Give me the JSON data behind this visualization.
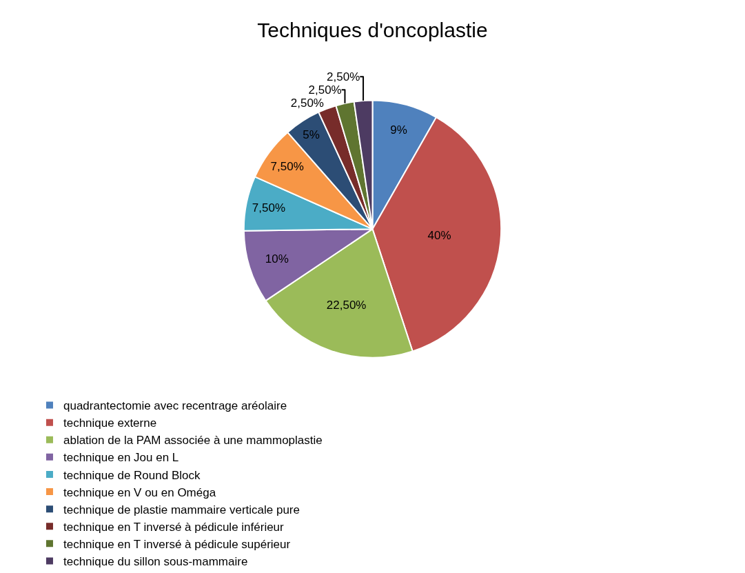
{
  "chart_data": {
    "type": "pie",
    "title": "Techniques d'oncoplastie",
    "categories": [
      "quadrantectomie avec recentrage aréolaire",
      "technique externe",
      "ablation de la PAM associée à une mammoplastie",
      "technique en Jou en L",
      "technique de Round Block",
      "technique en V ou en Oméga",
      "technique de plastie mammaire verticale pure",
      "technique en T inversé à pédicule inférieur",
      "technique en T inversé à pédicule supérieur",
      "technique du sillon sous-mammaire"
    ],
    "values": [
      9,
      40,
      22.5,
      10,
      7.5,
      7.5,
      5,
      2.5,
      2.5,
      2.5
    ],
    "value_labels": [
      "9%",
      "40%",
      "22,50%",
      "10%",
      "7,50%",
      "7,50%",
      "5%",
      "2,50%",
      "2,50%",
      "2,50%"
    ],
    "colors": [
      "#4f81bd",
      "#c0504d",
      "#9bbb59",
      "#8064a2",
      "#4bacc6",
      "#f79646",
      "#2c4d75",
      "#772c2a",
      "#5f7530",
      "#4d3b62"
    ],
    "legend": "bottom"
  }
}
